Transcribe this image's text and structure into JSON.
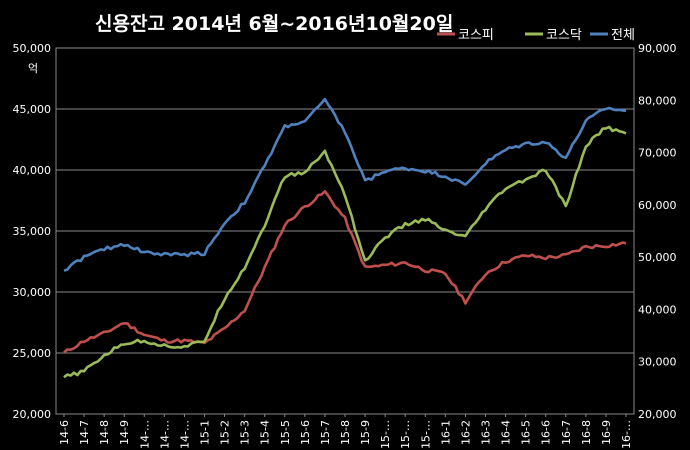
{
  "chart_data": {
    "type": "line",
    "title": "신용잔고  2014년 6월~2016년10월20일",
    "ylabel_left": "억",
    "ylim_left": [
      20000,
      50000
    ],
    "ylim_right": [
      20000,
      90000
    ],
    "yticks_left": [
      "20,000",
      "25,000",
      "30,000",
      "35,000",
      "40,000",
      "45,000",
      "50,000"
    ],
    "yticks_right": [
      "20,000",
      "30,000",
      "40,000",
      "50,000",
      "60,000",
      "70,000",
      "80,000",
      "90,000"
    ],
    "x_labels": [
      "14-6",
      "14-7",
      "14-8",
      "14-9",
      "14-…",
      "14-…",
      "14-…",
      "15-1",
      "15-2",
      "15-3",
      "15-4",
      "15-5",
      "15-6",
      "15-7",
      "15-8",
      "15-9",
      "15-…",
      "15-…",
      "15-…",
      "16-1",
      "16-2",
      "16-3",
      "16-4",
      "16-5",
      "16-6",
      "16-7",
      "16-8",
      "16-9",
      "16-…"
    ],
    "grid": true,
    "legend_position": "top-right",
    "series": [
      {
        "name": "코스피",
        "axis": "left",
        "color": "#c0504d",
        "values": [
          25000,
          26000,
          26600,
          27500,
          26500,
          26000,
          26000,
          25800,
          27000,
          28500,
          32000,
          35500,
          37000,
          38200,
          36000,
          32000,
          32200,
          32400,
          31800,
          31500,
          29200,
          31500,
          32500,
          33000,
          32800,
          33000,
          33700,
          33800,
          34000
        ]
      },
      {
        "name": "코스닥",
        "axis": "left",
        "color": "#9bbb59",
        "values": [
          23000,
          23500,
          24800,
          25800,
          26000,
          25600,
          25500,
          26000,
          29500,
          32000,
          35500,
          39500,
          39800,
          41500,
          38000,
          32500,
          34500,
          35500,
          36000,
          35000,
          34500,
          36800,
          38500,
          39200,
          40000,
          37000,
          42000,
          43500,
          43000
        ]
      },
      {
        "name": "전체",
        "axis": "right",
        "color": "#4f81bd",
        "values": [
          47500,
          50000,
          51500,
          52500,
          51000,
          50500,
          50500,
          50800,
          56500,
          60500,
          67500,
          75000,
          76000,
          80000,
          74000,
          64500,
          66500,
          67000,
          66500,
          65500,
          63800,
          68000,
          70500,
          71700,
          72000,
          69000,
          76000,
          78500,
          78000
        ]
      }
    ]
  }
}
